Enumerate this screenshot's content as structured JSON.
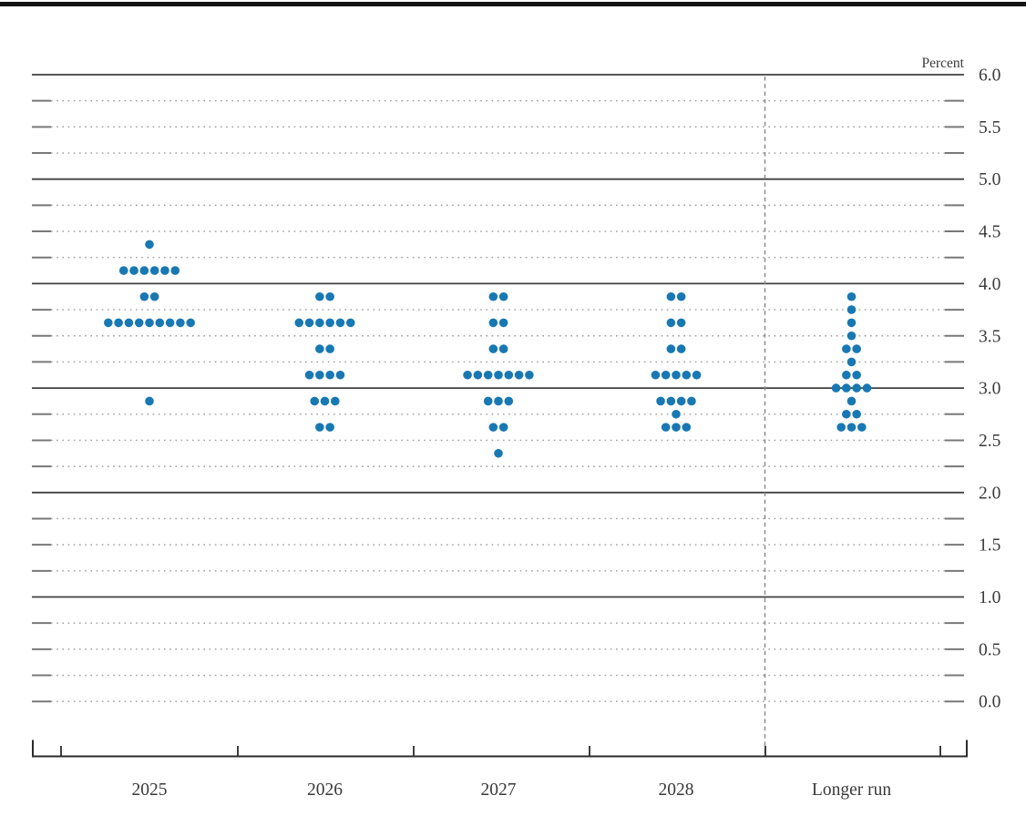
{
  "figure": {
    "unit_label": "Percent"
  },
  "chart_data": {
    "type": "scatter",
    "subtype": "fomc-dot-plot",
    "unit_label": "Percent",
    "categories": [
      "2025",
      "2026",
      "2027",
      "2028",
      "Longer run"
    ],
    "y_axis": {
      "min": 0.0,
      "max": 6.0,
      "grid_step": 0.25,
      "label_step": 0.5,
      "solid_line_step": 1.0,
      "tick_labels": [
        "6.0",
        "5.5",
        "5.0",
        "4.5",
        "4.0",
        "3.5",
        "3.0",
        "2.5",
        "2.0",
        "1.5",
        "1.0",
        "0.5",
        "0.0"
      ]
    },
    "separator_after_category": "2028",
    "series": [
      {
        "category": "2025",
        "dots": [
          {
            "rate": 4.375,
            "count": 1
          },
          {
            "rate": 4.125,
            "count": 6
          },
          {
            "rate": 3.875,
            "count": 2
          },
          {
            "rate": 3.625,
            "count": 9
          },
          {
            "rate": 2.875,
            "count": 1
          }
        ]
      },
      {
        "category": "2026",
        "dots": [
          {
            "rate": 3.875,
            "count": 2
          },
          {
            "rate": 3.625,
            "count": 6
          },
          {
            "rate": 3.375,
            "count": 2
          },
          {
            "rate": 3.125,
            "count": 4
          },
          {
            "rate": 2.875,
            "count": 3
          },
          {
            "rate": 2.625,
            "count": 2
          }
        ]
      },
      {
        "category": "2027",
        "dots": [
          {
            "rate": 3.875,
            "count": 2
          },
          {
            "rate": 3.625,
            "count": 2
          },
          {
            "rate": 3.375,
            "count": 2
          },
          {
            "rate": 3.125,
            "count": 7
          },
          {
            "rate": 2.875,
            "count": 3
          },
          {
            "rate": 2.625,
            "count": 2
          },
          {
            "rate": 2.375,
            "count": 1
          }
        ]
      },
      {
        "category": "2028",
        "dots": [
          {
            "rate": 3.875,
            "count": 2
          },
          {
            "rate": 3.625,
            "count": 2
          },
          {
            "rate": 3.375,
            "count": 2
          },
          {
            "rate": 3.125,
            "count": 5
          },
          {
            "rate": 2.875,
            "count": 4
          },
          {
            "rate": 2.75,
            "count": 1
          },
          {
            "rate": 2.625,
            "count": 3
          }
        ]
      },
      {
        "category": "Longer run",
        "dots": [
          {
            "rate": 3.875,
            "count": 1
          },
          {
            "rate": 3.75,
            "count": 1
          },
          {
            "rate": 3.625,
            "count": 1
          },
          {
            "rate": 3.5,
            "count": 1
          },
          {
            "rate": 3.375,
            "count": 2
          },
          {
            "rate": 3.25,
            "count": 1
          },
          {
            "rate": 3.125,
            "count": 2
          },
          {
            "rate": 3.0,
            "count": 4
          },
          {
            "rate": 2.875,
            "count": 1
          },
          {
            "rate": 2.75,
            "count": 2
          },
          {
            "rate": 2.625,
            "count": 3
          }
        ]
      }
    ],
    "colors": {
      "dot": "#1878b4",
      "solid_gridline": "#404040",
      "dotted_gridline": "#9b9b9b",
      "gridline_stub": "#787878",
      "axis": "#2b2b2b",
      "text": "#3a3a3a",
      "separator": "#8a8a8a",
      "top_rule": "#141414"
    }
  }
}
